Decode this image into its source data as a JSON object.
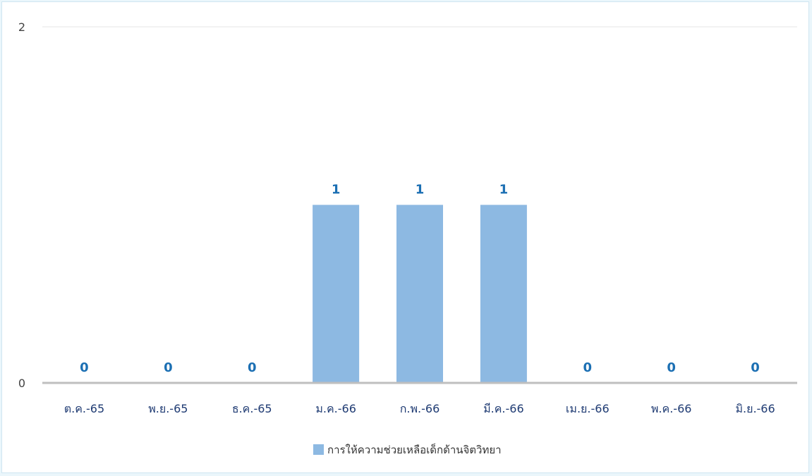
{
  "chart_data": {
    "type": "bar",
    "categories": [
      "ต.ค.-65",
      "พ.ย.-65",
      "ธ.ค.-65",
      "ม.ค.-66",
      "ก.พ.-66",
      "มี.ค.-66",
      "เม.ย.-66",
      "พ.ค.-66",
      "มิ.ย.-66"
    ],
    "series": [
      {
        "name": "การให้ความช่วยเหลือเด็กด้านจิตวิทยา",
        "values": [
          0,
          0,
          0,
          1,
          1,
          1,
          0,
          0,
          0
        ],
        "color": "#8db9e2"
      }
    ],
    "yticks": [
      0,
      2
    ],
    "ylim": [
      0,
      2
    ],
    "grid": true,
    "data_labels": true,
    "legend_position": "bottom",
    "label_color": "#1b6fb3"
  }
}
